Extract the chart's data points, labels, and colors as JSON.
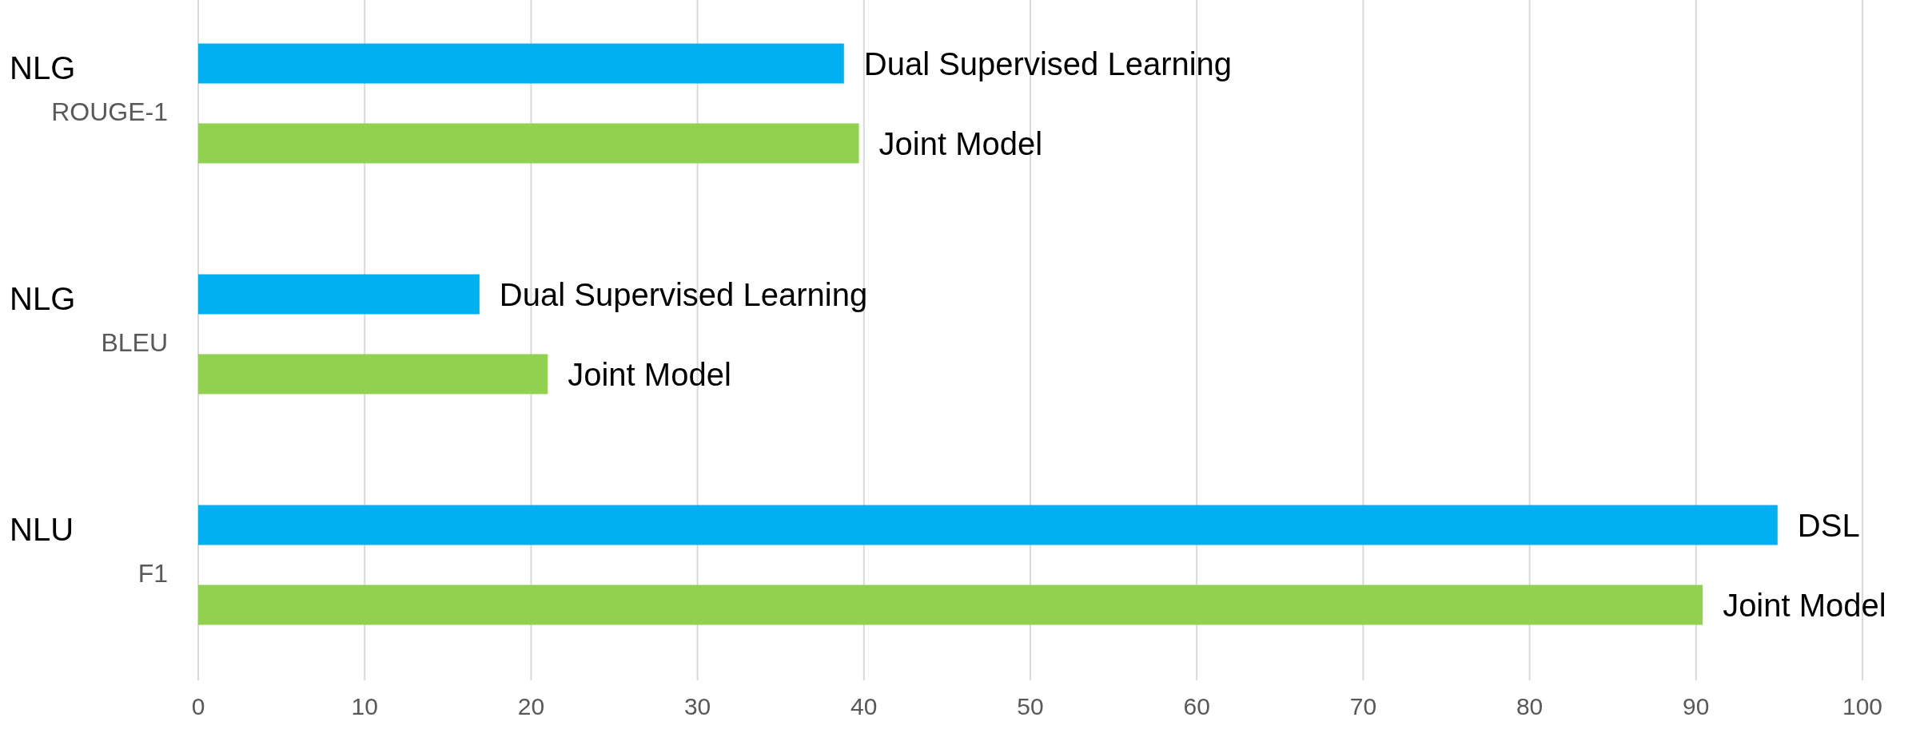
{
  "chart_data": {
    "type": "bar",
    "orientation": "horizontal",
    "categories": [
      "NLG\nROUGE-1",
      "NLG\nBLEU",
      "NLU\nF1"
    ],
    "series": [
      {
        "color": "#00b0f0",
        "values": [
          38.8,
          16.9,
          94.9
        ],
        "value_labels": [
          "Dual Supervised Learning",
          "Dual Supervised Learning",
          "DSL"
        ]
      },
      {
        "color": "#92d050",
        "values": [
          39.7,
          21.0,
          90.4
        ],
        "value_labels": [
          "Joint Model",
          "Joint Model",
          "Joint Model"
        ]
      }
    ],
    "xlim": [
      0,
      100
    ],
    "xticks": [
      0,
      10,
      20,
      30,
      40,
      50,
      60,
      70,
      80,
      90,
      100
    ],
    "grid": "x"
  }
}
